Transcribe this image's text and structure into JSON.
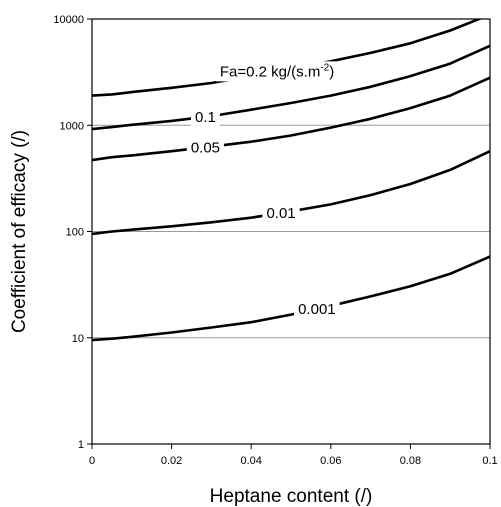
{
  "chart_data": {
    "type": "line",
    "xlabel": "Heptane content (/)",
    "ylabel": "Coefficient of efficacy (/)",
    "xlim": [
      0,
      0.1
    ],
    "ylim": [
      1,
      10000
    ],
    "yscale": "log",
    "grid": "horizontal",
    "x_ticks": [
      "0",
      "0.02",
      "0.04",
      "0.06",
      "0.08",
      "0.1"
    ],
    "y_ticks": [
      "1",
      "10",
      "100",
      "1000",
      "10000"
    ],
    "series": [
      {
        "name": "Fa=0.2 kg/(s.m-2)",
        "label_main": "Fa=0.2 kg/(s.m",
        "label_sup": "-2",
        "label_tail": ")",
        "label_x": 0.0465,
        "label_y_factor": 1,
        "x": [
          0,
          0.005,
          0.01,
          0.02,
          0.03,
          0.04,
          0.05,
          0.06,
          0.07,
          0.08,
          0.09,
          0.1
        ],
        "values": [
          1900,
          1950,
          2050,
          2250,
          2500,
          2900,
          3400,
          4000,
          4800,
          5900,
          7800,
          11000
        ]
      },
      {
        "name": "0.1",
        "label_main": "0.1",
        "label_x": 0.0285,
        "label_y_factor": 1,
        "x": [
          0,
          0.005,
          0.01,
          0.02,
          0.03,
          0.04,
          0.05,
          0.06,
          0.07,
          0.08,
          0.09,
          0.1
        ],
        "values": [
          920,
          960,
          1010,
          1100,
          1220,
          1400,
          1620,
          1900,
          2300,
          2900,
          3800,
          5600
        ]
      },
      {
        "name": "0.05",
        "label_main": "0.05",
        "label_x": 0.0285,
        "label_y_factor": 1,
        "x": [
          0,
          0.005,
          0.01,
          0.02,
          0.03,
          0.04,
          0.05,
          0.06,
          0.07,
          0.08,
          0.09,
          0.1
        ],
        "values": [
          470,
          500,
          520,
          570,
          630,
          700,
          800,
          950,
          1150,
          1450,
          1900,
          2800
        ]
      },
      {
        "name": "0.01",
        "label_main": "0.01",
        "label_x": 0.0475,
        "label_y_factor": 1,
        "x": [
          0,
          0.005,
          0.01,
          0.02,
          0.03,
          0.04,
          0.05,
          0.06,
          0.07,
          0.08,
          0.09,
          0.1
        ],
        "values": [
          95,
          100,
          104,
          112,
          122,
          135,
          155,
          180,
          220,
          280,
          380,
          570
        ]
      },
      {
        "name": "0.001",
        "label_main": "0.001",
        "label_x": 0.0565,
        "label_y_factor": 1,
        "x": [
          0,
          0.005,
          0.01,
          0.02,
          0.03,
          0.04,
          0.05,
          0.06,
          0.07,
          0.08,
          0.09,
          0.1
        ],
        "values": [
          9.5,
          9.8,
          10.2,
          11.2,
          12.5,
          14.0,
          16.5,
          20.0,
          24.5,
          30.5,
          40.0,
          58.0
        ]
      }
    ]
  }
}
